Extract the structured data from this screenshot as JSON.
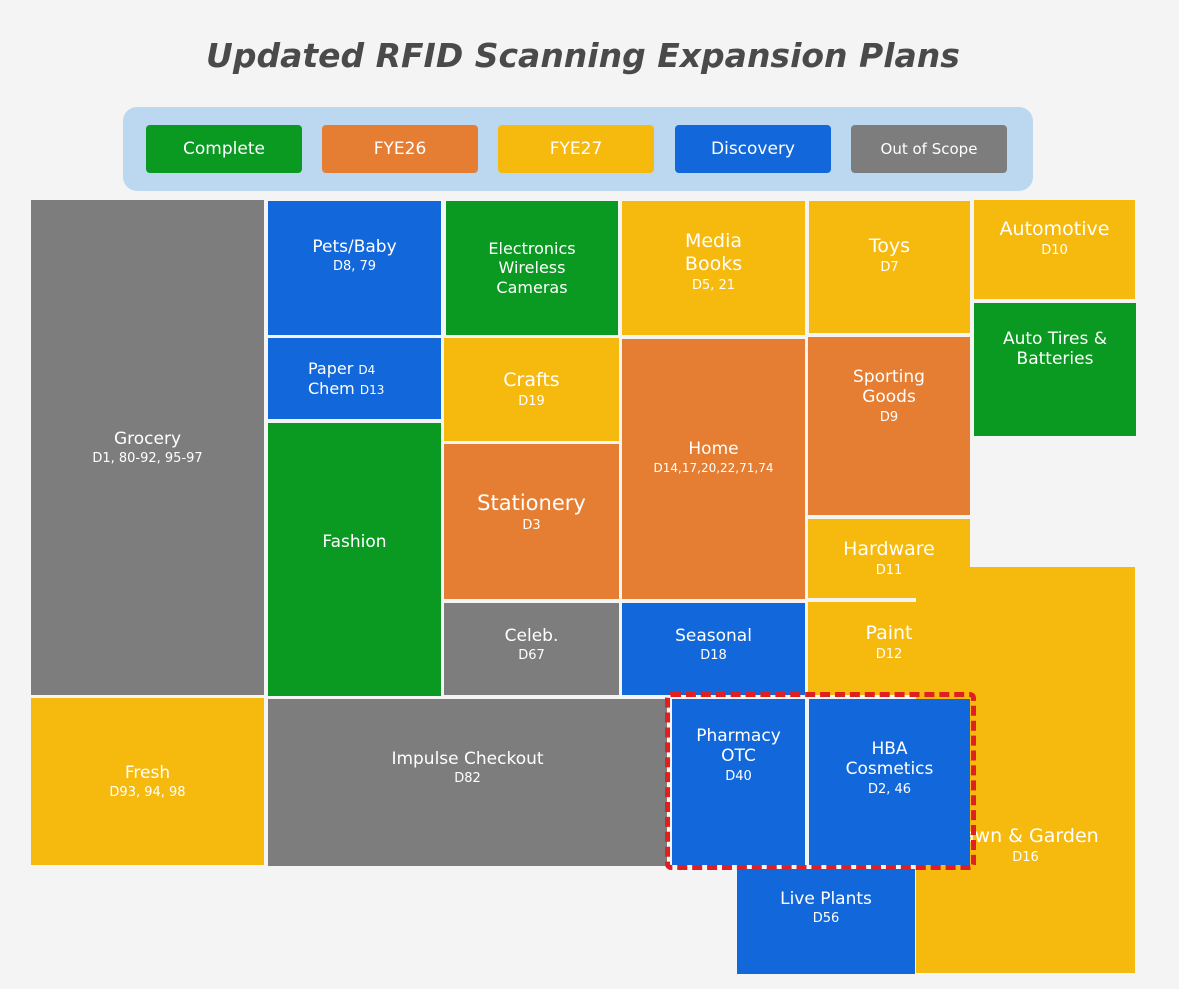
{
  "title": "Updated RFID Scanning Expansion Plans",
  "colors": {
    "complete": "#0a9a22",
    "fye26": "#e57e33",
    "fye27": "#f6b90e",
    "discovery": "#1268db",
    "out_of_scope": "#7d7d7d",
    "highlight": "#e02020"
  },
  "legend": [
    {
      "label": "Complete",
      "status": "complete"
    },
    {
      "label": "FYE26",
      "status": "fye26"
    },
    {
      "label": "FYE27",
      "status": "fye27"
    },
    {
      "label": "Discovery",
      "status": "discovery"
    },
    {
      "label": "Out of Scope",
      "status": "out_of_scope"
    }
  ],
  "tiles": {
    "grocery": {
      "name": "Grocery",
      "code": "D1, 80-92, 95-97",
      "status": "out_of_scope"
    },
    "fresh": {
      "name": "Fresh",
      "code": "D93, 94, 98",
      "status": "fye27"
    },
    "pets_baby": {
      "name": "Pets/Baby",
      "code": "D8, 79",
      "status": "discovery"
    },
    "paper_chem": {
      "line1": "Paper",
      "code1": "D4",
      "line2": "Chem",
      "code2": "D13",
      "status": "discovery"
    },
    "fashion": {
      "name": "Fashion",
      "code": "",
      "status": "complete"
    },
    "electronics": {
      "name": "Electronics\nWireless\nCameras",
      "code": "",
      "status": "complete"
    },
    "crafts": {
      "name": "Crafts",
      "code": "D19",
      "status": "fye27"
    },
    "stationery": {
      "name": "Stationery",
      "code": "D3",
      "status": "fye26"
    },
    "celeb": {
      "name": "Celeb.",
      "code": "D67",
      "status": "out_of_scope"
    },
    "media_books": {
      "name": "Media\nBooks",
      "code": "D5, 21",
      "status": "fye27"
    },
    "home": {
      "name": "Home",
      "code": "D14,17,20,22,71,74",
      "status": "fye26"
    },
    "seasonal": {
      "name": "Seasonal",
      "code": "D18",
      "status": "discovery"
    },
    "toys": {
      "name": "Toys",
      "code": "D7",
      "status": "fye27"
    },
    "sporting_goods": {
      "name": "Sporting\nGoods",
      "code": "D9",
      "status": "fye26"
    },
    "hardware": {
      "name": "Hardware",
      "code": "D11",
      "status": "fye27"
    },
    "paint": {
      "name": "Paint",
      "code": "D12",
      "status": "fye27"
    },
    "automotive": {
      "name": "Automotive",
      "code": "D10",
      "status": "fye27"
    },
    "auto_tires": {
      "name": "Auto Tires &\nBatteries",
      "code": "",
      "status": "complete"
    },
    "impulse": {
      "name": "Impulse Checkout",
      "code": "D82",
      "status": "out_of_scope"
    },
    "pharmacy": {
      "name": "Pharmacy\nOTC",
      "code": "D40",
      "status": "discovery"
    },
    "hba": {
      "name": "HBA\nCosmetics",
      "code": "D2, 46",
      "status": "discovery"
    },
    "live_plants": {
      "name": "Live Plants",
      "code": "D56",
      "status": "discovery"
    },
    "lawn_garden": {
      "name": "Lawn & Garden",
      "code": "D16",
      "status": "fye27"
    }
  }
}
